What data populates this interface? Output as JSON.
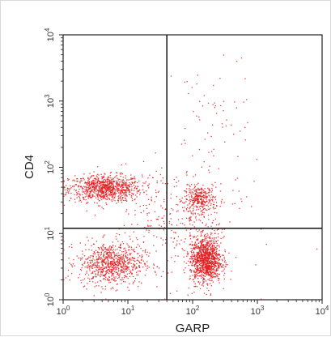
{
  "chart_data": {
    "type": "scatter",
    "xlabel": "GARP",
    "ylabel": "CD4",
    "x_scale": "log",
    "y_scale": "log",
    "xlim": [
      1,
      10000
    ],
    "ylim": [
      1,
      10000
    ],
    "x_ticks": [
      {
        "value": 1,
        "base": "10",
        "exp": "0"
      },
      {
        "value": 10,
        "base": "10",
        "exp": "1"
      },
      {
        "value": 100,
        "base": "10",
        "exp": "2"
      },
      {
        "value": 1000,
        "base": "10",
        "exp": "3"
      },
      {
        "value": 10000,
        "base": "10",
        "exp": "4"
      }
    ],
    "y_ticks": [
      {
        "value": 1,
        "base": "10",
        "exp": "0"
      },
      {
        "value": 10,
        "base": "10",
        "exp": "1"
      },
      {
        "value": 100,
        "base": "10",
        "exp": "2"
      },
      {
        "value": 1000,
        "base": "10",
        "exp": "3"
      },
      {
        "value": 10000,
        "base": "10",
        "exp": "4"
      }
    ],
    "quadrant_gates": {
      "x": 40,
      "y": 12
    },
    "point_color": "#e41a1c",
    "grid": false,
    "legend": "none",
    "populations": [
      {
        "center": [
          4.5,
          48
        ],
        "spread": [
          0.28,
          0.1
        ],
        "count": 900
      },
      {
        "center": [
          130,
          33
        ],
        "spread": [
          0.12,
          0.1
        ],
        "count": 300
      },
      {
        "center": [
          5.5,
          3.5
        ],
        "spread": [
          0.25,
          0.16
        ],
        "count": 800
      },
      {
        "center": [
          160,
          4
        ],
        "spread": [
          0.12,
          0.17
        ],
        "count": 1100
      },
      {
        "center": [
          60,
          15
        ],
        "spread": [
          0.5,
          0.45
        ],
        "count": 350
      },
      {
        "center": [
          200,
          500
        ],
        "spread": [
          0.3,
          0.5
        ],
        "count": 60
      }
    ]
  }
}
